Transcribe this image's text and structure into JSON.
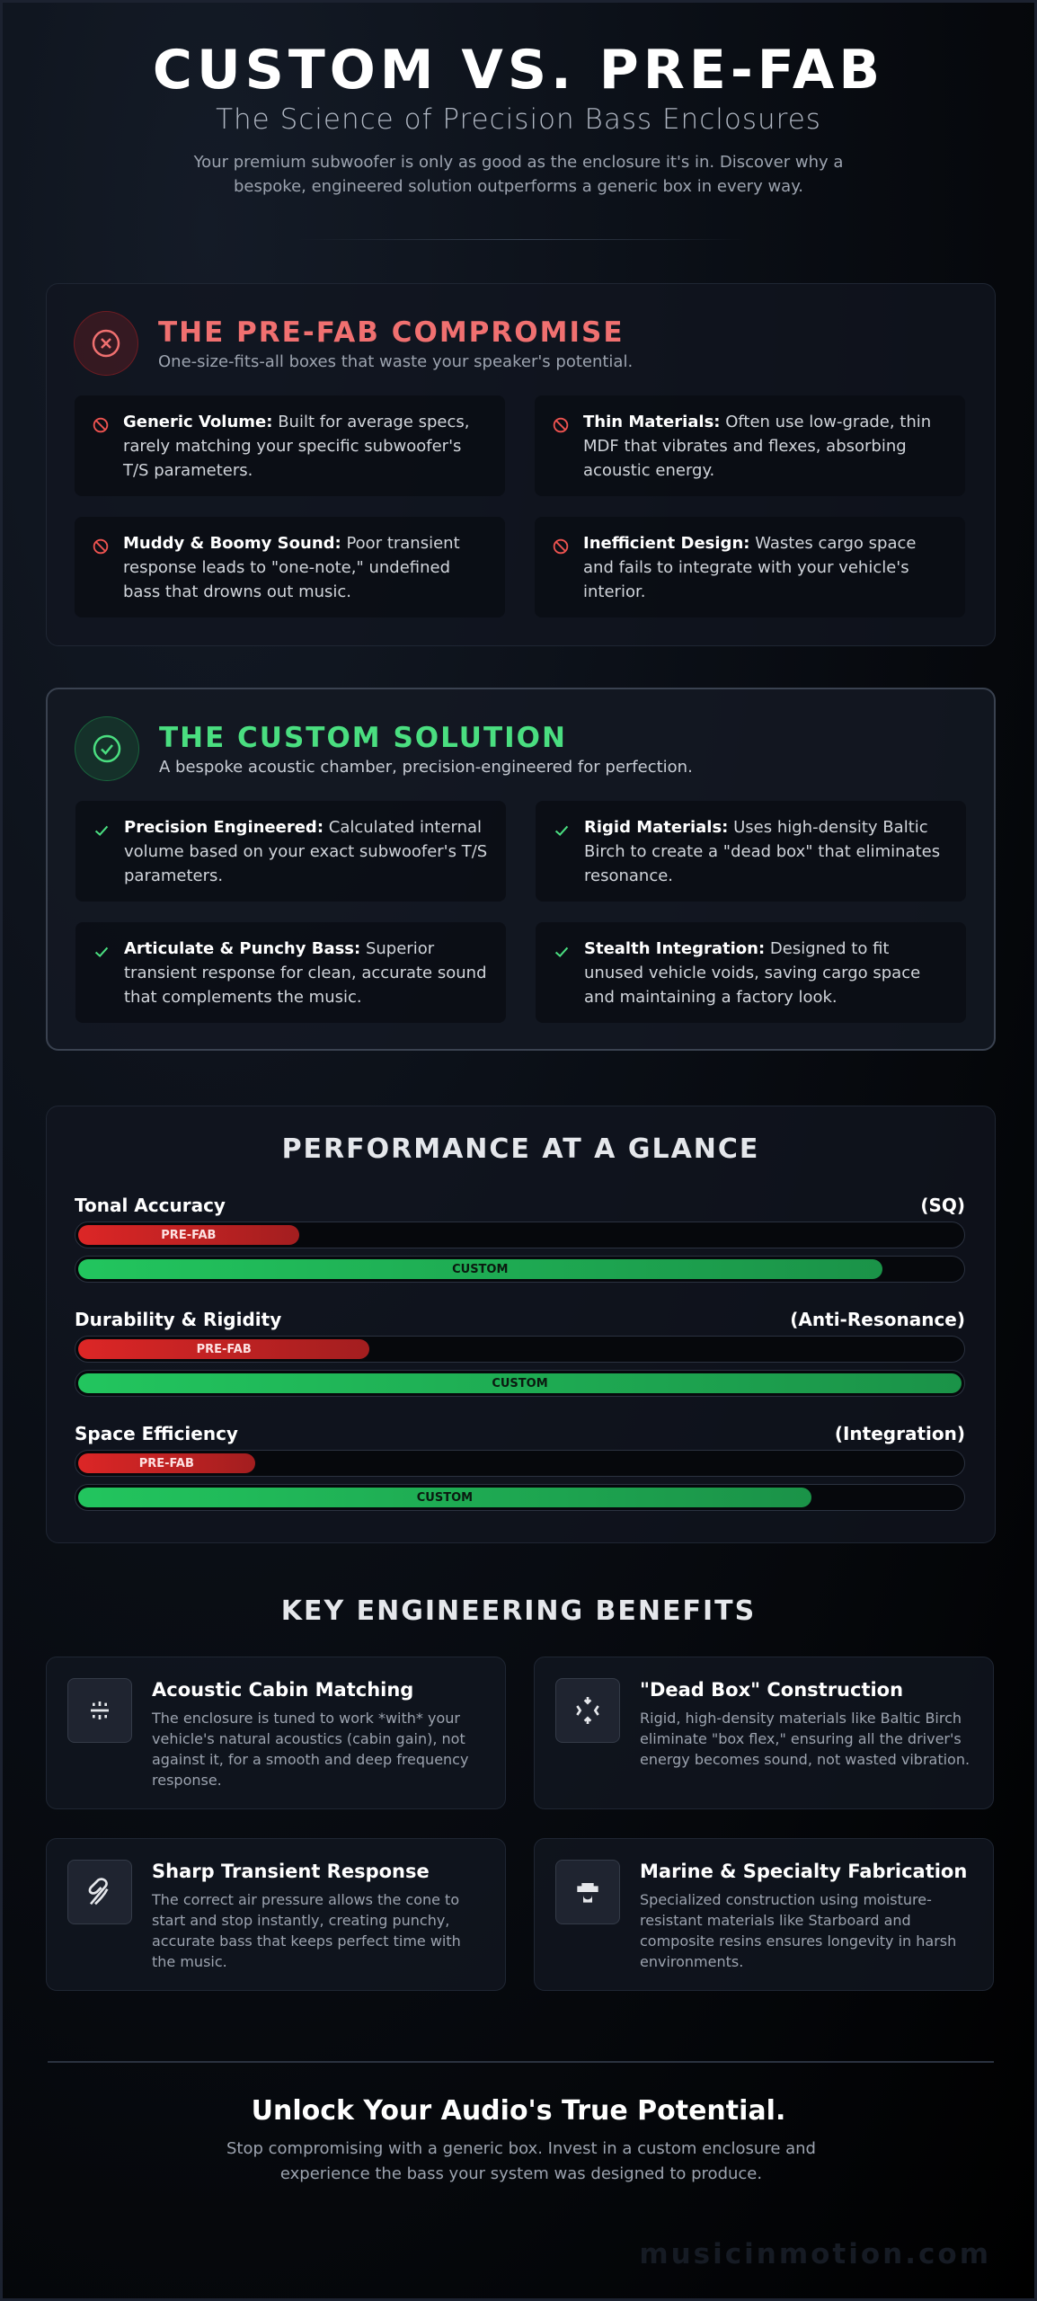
{
  "header": {
    "title": "CUSTOM VS. PRE-FAB",
    "subtitle": "The Science of Precision Bass Enclosures",
    "intro": "Your premium subwoofer is only as good as the enclosure it's in. Discover why a bespoke, engineered solution outperforms a generic box in every way."
  },
  "prefab": {
    "title": "THE PRE-FAB COMPROMISE",
    "subtitle": "One-size-fits-all boxes that waste your speaker's potential.",
    "items": [
      {
        "label": "Generic Volume:",
        "text": "Built for average specs, rarely matching your specific subwoofer's T/S parameters."
      },
      {
        "label": "Thin Materials:",
        "text": "Often use low-grade, thin MDF that vibrates and flexes, absorbing acoustic energy."
      },
      {
        "label": "Muddy & Boomy Sound:",
        "text": "Poor transient response leads to \"one-note,\" undefined bass that drowns out music."
      },
      {
        "label": "Inefficient Design:",
        "text": "Wastes cargo space and fails to integrate with your vehicle's interior."
      }
    ]
  },
  "custom": {
    "title": "THE CUSTOM SOLUTION",
    "subtitle": "A bespoke acoustic chamber, precision-engineered for perfection.",
    "items": [
      {
        "label": "Precision Engineered:",
        "text": "Calculated internal volume based on your exact subwoofer's T/S parameters."
      },
      {
        "label": "Rigid Materials:",
        "text": "Uses high-density Baltic Birch to create a \"dead box\" that eliminates resonance."
      },
      {
        "label": "Articulate & Punchy Bass:",
        "text": "Superior transient response for clean, accurate sound that complements the music."
      },
      {
        "label": "Stealth Integration:",
        "text": "Designed to fit unused vehicle voids, saving cargo space and maintaining a factory look."
      }
    ]
  },
  "performance": {
    "title": "PERFORMANCE AT A GLANCE",
    "series": [
      {
        "name": "PRE-FAB",
        "color": "#dc2626"
      },
      {
        "name": "CUSTOM",
        "color": "#22c55e"
      }
    ],
    "metrics": [
      {
        "name": "Tonal Accuracy",
        "note": "(SQ)",
        "values": [
          25,
          91
        ]
      },
      {
        "name": "Durability & Rigidity",
        "note": "(Anti-Resonance)",
        "values": [
          33,
          100
        ]
      },
      {
        "name": "Space Efficiency",
        "note": "(Integration)",
        "values": [
          20,
          83
        ]
      }
    ]
  },
  "benefits": {
    "title": "KEY ENGINEERING BENEFITS",
    "items": [
      {
        "title": "Acoustic Cabin Matching",
        "text": "The enclosure is tuned to work *with* your vehicle's natural acoustics (cabin gain), not against it, for a smooth and deep frequency response."
      },
      {
        "title": "\"Dead Box\" Construction",
        "text": "Rigid, high-density materials like Baltic Birch eliminate \"box flex,\" ensuring all the driver's energy becomes sound, not wasted vibration."
      },
      {
        "title": "Sharp Transient Response",
        "text": "The correct air pressure allows the cone to start and stop instantly, creating punchy, accurate bass that keeps perfect time with the music."
      },
      {
        "title": "Marine & Specialty Fabrication",
        "text": "Specialized construction using moisture-resistant materials like Starboard and composite resins ensures longevity in harsh environments."
      }
    ]
  },
  "cta": {
    "title": "Unlock Your Audio's True Potential.",
    "text": "Stop compromising with a generic box. Invest in a custom enclosure and experience the bass your system was designed to produce."
  },
  "watermark": "musicinmotion.com"
}
